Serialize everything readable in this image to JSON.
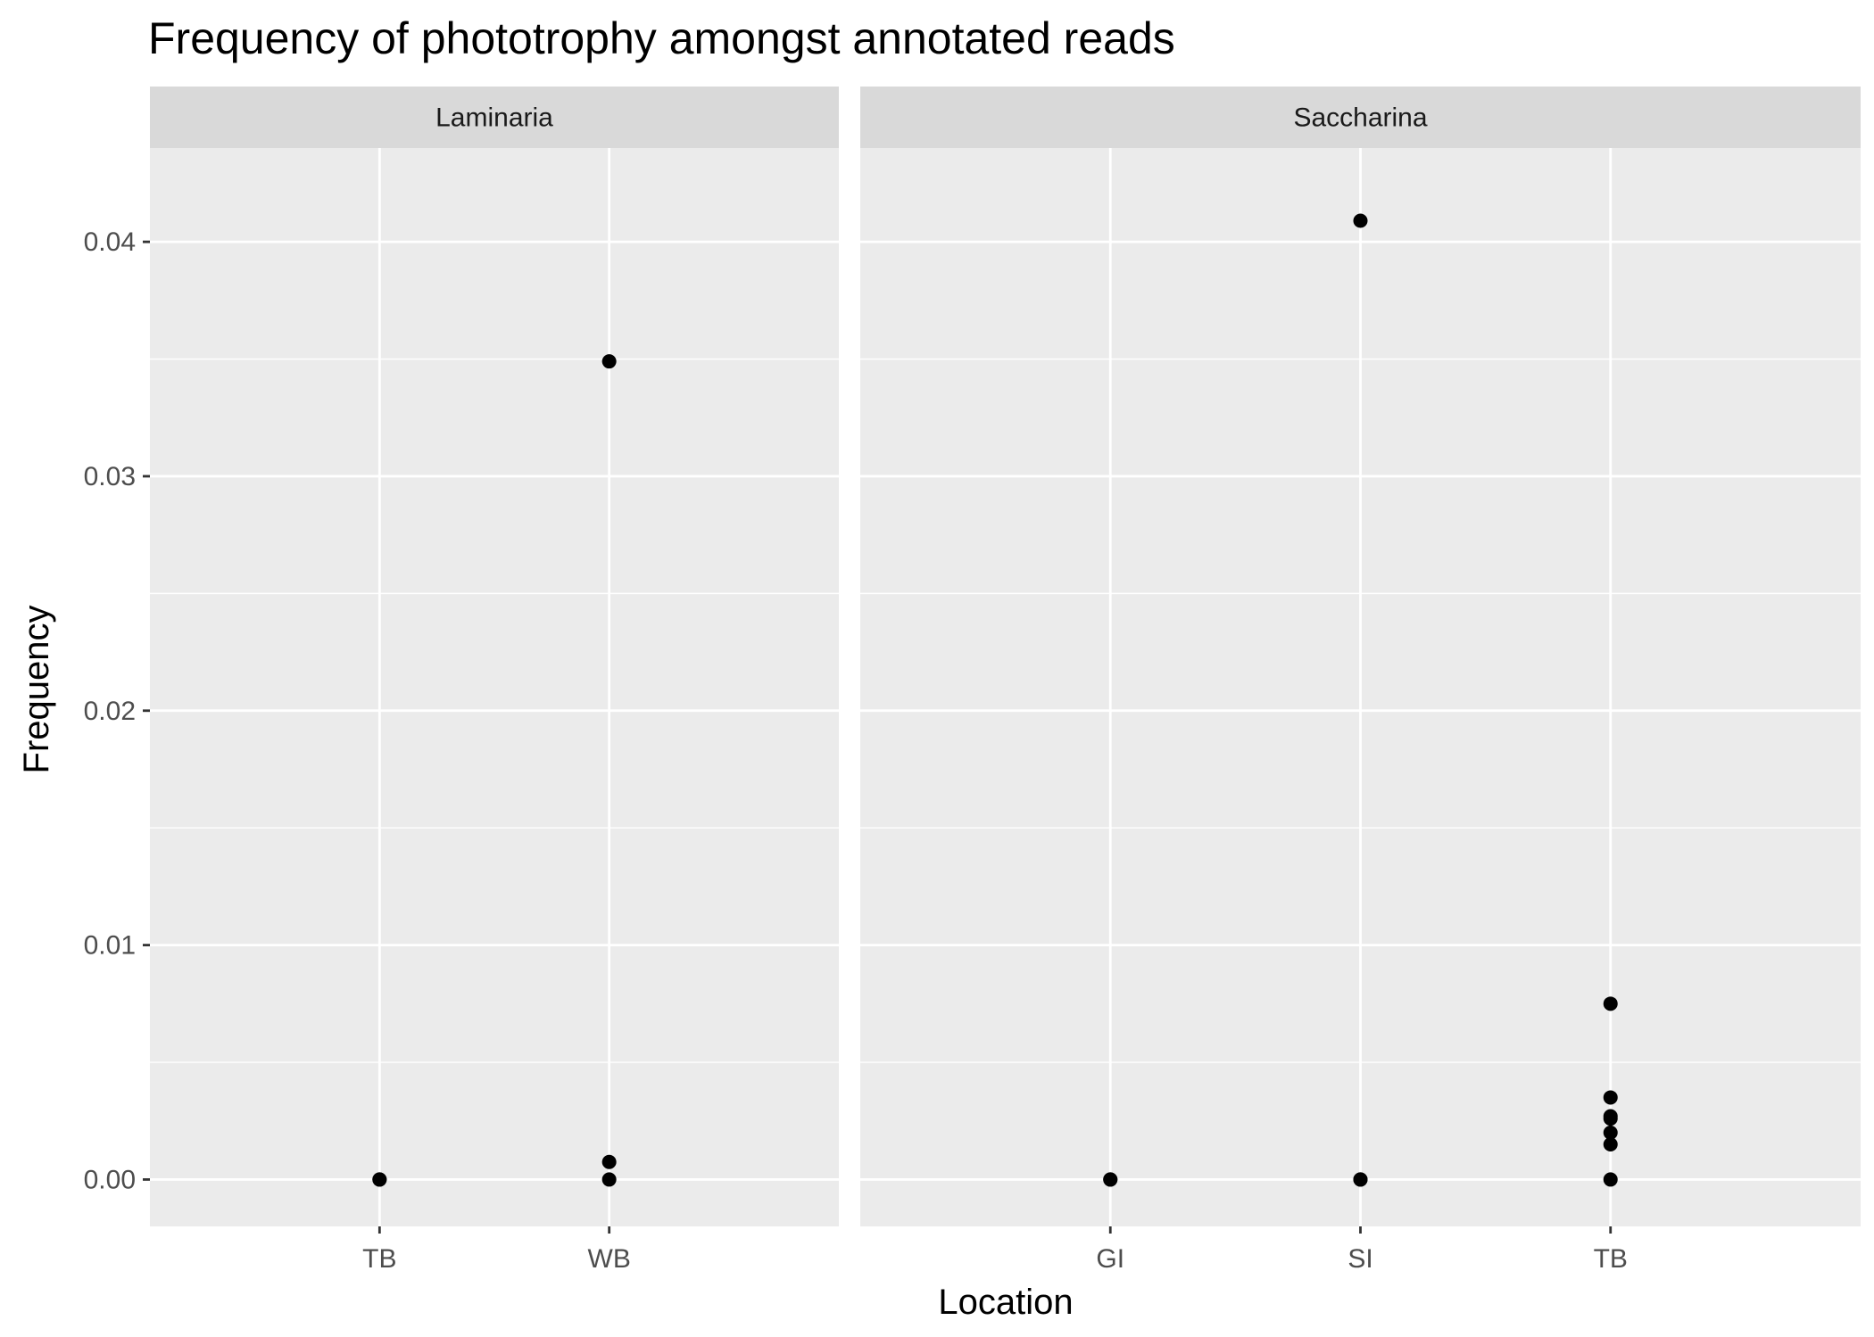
{
  "chart_data": {
    "type": "scatter",
    "title": "Frequency of phototrophy amongst annotated reads",
    "xlabel": "Location",
    "ylabel": "Frequency",
    "ylim": [
      -0.002,
      0.044
    ],
    "yticks": [
      "0.00",
      "0.01",
      "0.02",
      "0.03",
      "0.04"
    ],
    "grid": true,
    "panel_background": "#ebebeb",
    "strip_background": "#d9d9d9",
    "point_color": "#000000",
    "facets": [
      {
        "name": "Laminaria",
        "categories": [
          "TB",
          "WB"
        ],
        "points": [
          {
            "x": "TB",
            "y": 0.0
          },
          {
            "x": "TB",
            "y": 0.0
          },
          {
            "x": "WB",
            "y": 0.0349
          },
          {
            "x": "WB",
            "y": 0.00075
          },
          {
            "x": "WB",
            "y": 0.0
          }
        ]
      },
      {
        "name": "Saccharina",
        "categories": [
          "GI",
          "SI",
          "TB"
        ],
        "points": [
          {
            "x": "GI",
            "y": 0.0
          },
          {
            "x": "GI",
            "y": 0.0
          },
          {
            "x": "SI",
            "y": 0.0409
          },
          {
            "x": "SI",
            "y": 0.0
          },
          {
            "x": "SI",
            "y": 0.0
          },
          {
            "x": "TB",
            "y": 0.0075
          },
          {
            "x": "TB",
            "y": 0.0035
          },
          {
            "x": "TB",
            "y": 0.0027
          },
          {
            "x": "TB",
            "y": 0.0026
          },
          {
            "x": "TB",
            "y": 0.002
          },
          {
            "x": "TB",
            "y": 0.0015
          },
          {
            "x": "TB",
            "y": 0.0
          }
        ]
      }
    ]
  }
}
